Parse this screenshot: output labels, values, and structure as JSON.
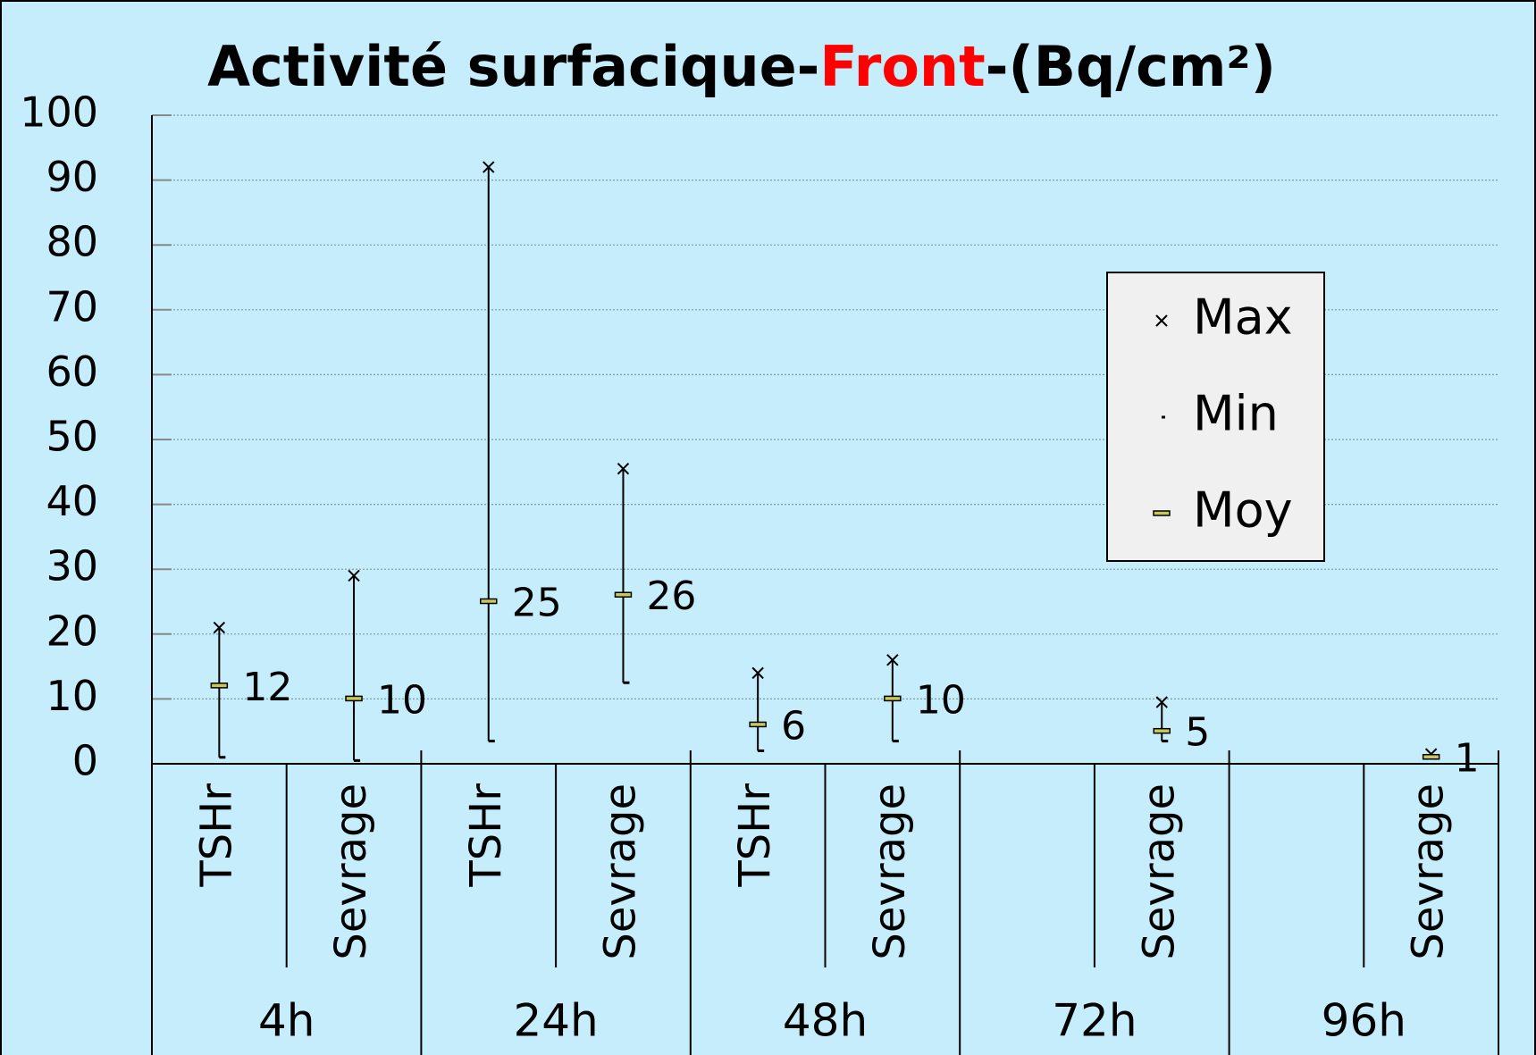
{
  "chart_data": {
    "type": "stock",
    "title": [
      {
        "text": "Activité surfacique-",
        "color": "#000000"
      },
      {
        "text": "Front",
        "color": "#ff0000"
      },
      {
        "text": "-(Bq/cm²)",
        "color": "#000000"
      }
    ],
    "categories": [
      "TSHr",
      "Sevrage",
      "TSHr",
      "Sevrage",
      "TSHr",
      "Sevrage",
      null,
      "Sevrage",
      null,
      "Sevrage"
    ],
    "groups": [
      "4h",
      "24h",
      "48h",
      "72h",
      "96h"
    ],
    "series": [
      {
        "name": "Max",
        "color": "#000000",
        "values": [
          21,
          29,
          92,
          45.5,
          14,
          16,
          null,
          9.5,
          null,
          1.5
        ]
      },
      {
        "name": "Min",
        "color": "#000000",
        "values": [
          1,
          0.5,
          3.5,
          12.5,
          2,
          3.5,
          null,
          3.5,
          null,
          1
        ]
      },
      {
        "name": "Moy",
        "color": "#c8c85a",
        "values": [
          12,
          10,
          25,
          26,
          6,
          10,
          null,
          5,
          null,
          1
        ]
      }
    ],
    "ylim": [
      0,
      100
    ],
    "yticks": [
      0,
      10,
      20,
      30,
      40,
      50,
      60,
      70,
      80,
      90,
      100
    ],
    "grid": true
  }
}
